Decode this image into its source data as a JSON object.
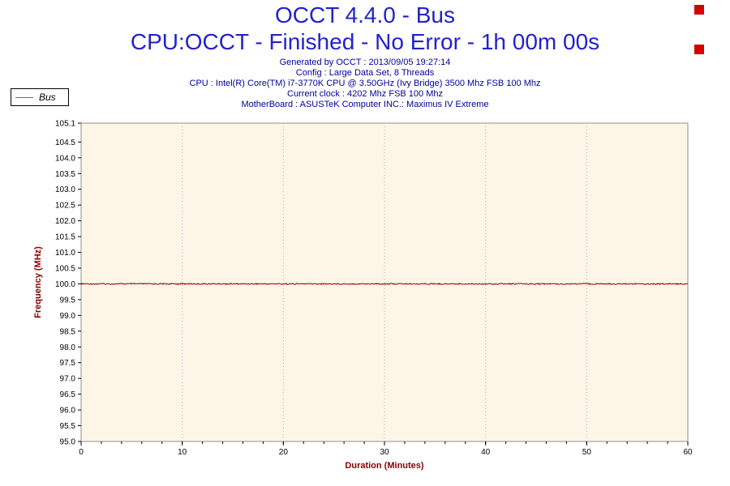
{
  "header": {
    "title": "OCCT 4.4.0 - Bus",
    "subtitle": "CPU:OCCT - Finished - No Error - 1h 00m 00s",
    "info_lines": [
      "Generated by OCCT : 2013/09/05 19:27:14",
      "Config : Large Data Set, 8 Threads",
      "CPU : Intel(R) Core(TM) i7-3770K CPU @ 3.50GHz (Ivy Bridge) 3500 Mhz FSB 100 Mhz",
      "Current clock : 4202 Mhz FSB 100 Mhz",
      "MotherBoard : ASUSTeK Computer INC.: Maximus IV Extreme"
    ]
  },
  "legend": {
    "label": "Bus"
  },
  "colors": {
    "title_blue": "#2222CC",
    "info_navy": "#000099",
    "axis_label_red": "#8B0000",
    "series_dark_red": "#8B0000",
    "plot_bg": "#FDF5E6",
    "plot_border": "#909090",
    "grid": "#AAAACC",
    "tick": "#000000",
    "marker_red": "#D40000"
  },
  "chart_data": {
    "type": "line",
    "title": "OCCT 4.4.0 - Bus",
    "xlabel": "Duration (Minutes)",
    "ylabel": "Frequency (MHz)",
    "xlim": [
      0,
      60
    ],
    "ylim": [
      95.0,
      105.1
    ],
    "x_ticks": [
      0,
      10,
      20,
      30,
      40,
      50,
      60
    ],
    "x_minor_step": 2,
    "y_ticks": [
      95.0,
      95.5,
      96.0,
      96.5,
      97.0,
      97.5,
      98.0,
      98.5,
      99.0,
      99.5,
      100.0,
      100.5,
      101.0,
      101.5,
      102.0,
      102.5,
      103.0,
      103.5,
      104.0,
      104.5,
      105.1
    ],
    "grid": "vertical-dotted",
    "legend_position": "top-left",
    "series": [
      {
        "name": "Bus",
        "x": [
          0,
          60
        ],
        "values": [
          100.0,
          100.0
        ]
      }
    ]
  }
}
